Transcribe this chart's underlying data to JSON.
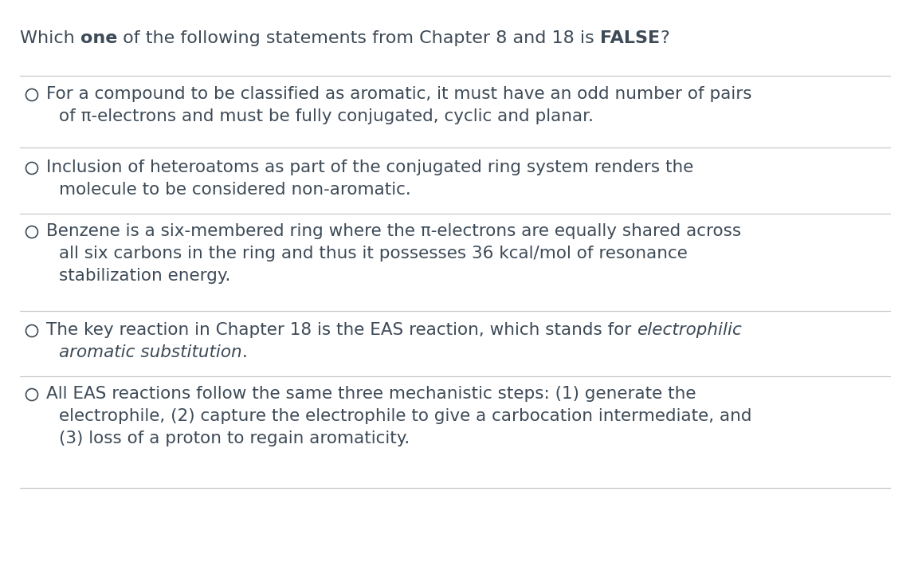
{
  "background_color": "#ffffff",
  "text_color": "#3d4a57",
  "line_color": "#c8c8c8",
  "font_size_title": 16,
  "font_size_option": 15.5,
  "title_parts": [
    {
      "text": "Which ",
      "bold": false,
      "italic": false
    },
    {
      "text": "one",
      "bold": true,
      "italic": false
    },
    {
      "text": " of the following statements from Chapter 8 and 18 is ",
      "bold": false,
      "italic": false
    },
    {
      "text": "FALSE",
      "bold": true,
      "italic": false
    },
    {
      "text": "?",
      "bold": false,
      "italic": false
    }
  ],
  "options": [
    {
      "lines": [
        [
          {
            "text": "For a compound to be classified as aromatic, it must have an odd number of pairs",
            "bold": false,
            "italic": false
          }
        ],
        [
          {
            "text": "of π-electrons and must be fully conjugated, cyclic and planar.",
            "bold": false,
            "italic": false
          }
        ]
      ]
    },
    {
      "lines": [
        [
          {
            "text": "Inclusion of heteroatoms as part of the conjugated ring system renders the",
            "bold": false,
            "italic": false
          }
        ],
        [
          {
            "text": "molecule to be considered non-aromatic.",
            "bold": false,
            "italic": false
          }
        ]
      ]
    },
    {
      "lines": [
        [
          {
            "text": "Benzene is a six-membered ring where the π-electrons are equally shared across",
            "bold": false,
            "italic": false
          }
        ],
        [
          {
            "text": "all six carbons in the ring and thus it possesses 36 kcal/mol of resonance",
            "bold": false,
            "italic": false
          }
        ],
        [
          {
            "text": "stabilization energy.",
            "bold": false,
            "italic": false
          }
        ]
      ]
    },
    {
      "lines": [
        [
          {
            "text": "The key reaction in Chapter 18 is the EAS reaction, which stands for ",
            "bold": false,
            "italic": false
          },
          {
            "text": "electrophilic",
            "bold": false,
            "italic": true
          }
        ],
        [
          {
            "text": "aromatic substitution",
            "bold": false,
            "italic": true
          },
          {
            "text": ".",
            "bold": false,
            "italic": false
          }
        ]
      ]
    },
    {
      "lines": [
        [
          {
            "text": "All EAS reactions follow the same three mechanistic steps: (1) generate the",
            "bold": false,
            "italic": false
          }
        ],
        [
          {
            "text": "electrophile, (2) capture the electrophile to give a carbocation intermediate, and",
            "bold": false,
            "italic": false
          }
        ],
        [
          {
            "text": "(3) loss of a proton to regain aromaticity.",
            "bold": false,
            "italic": false
          }
        ]
      ]
    }
  ]
}
